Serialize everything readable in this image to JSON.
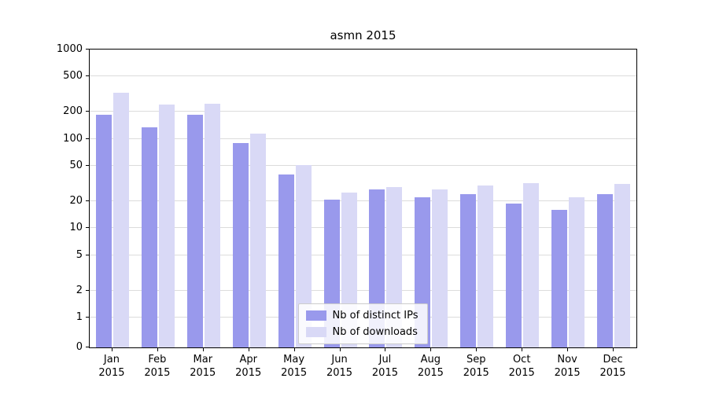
{
  "chart_data": {
    "type": "bar",
    "title": "asmn 2015",
    "categories": [
      "Jan\n2015",
      "Feb\n2015",
      "Mar\n2015",
      "Apr\n2015",
      "May\n2015",
      "Jun\n2015",
      "Jul\n2015",
      "Aug\n2015",
      "Sep\n2015",
      "Oct\n2015",
      "Nov\n2015",
      "Dec\n2015"
    ],
    "series": [
      {
        "name": "Nb of distinct IPs",
        "color": "#9999ec",
        "values": [
          185,
          135,
          185,
          90,
          40,
          21,
          27,
          22,
          24,
          19,
          16,
          24
        ]
      },
      {
        "name": "Nb of downloads",
        "color": "#d9d9f6",
        "values": [
          330,
          240,
          245,
          115,
          51,
          25,
          29,
          27,
          30,
          32,
          22,
          31
        ]
      }
    ],
    "yticks": [
      0,
      1,
      2,
      5,
      10,
      20,
      50,
      100,
      200,
      500,
      1000
    ],
    "yscale": "symlog",
    "ylim": [
      0,
      1000
    ],
    "xlabel": "",
    "ylabel": "",
    "grid": "horizontal",
    "legend_position": "lower center"
  },
  "colors": {
    "background": "#ffffff",
    "grid": "#dcdcdc",
    "spine": "#000000",
    "bar_ips": "#9999ec",
    "bar_downloads": "#d9d9f6"
  }
}
